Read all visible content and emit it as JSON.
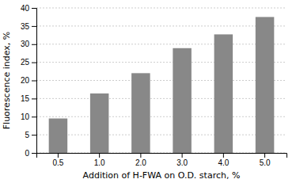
{
  "chart_data": {
    "type": "bar",
    "categories": [
      "0.5",
      "1.0",
      "2.0",
      "3.0",
      "4.0",
      "5.0"
    ],
    "values": [
      9.5,
      16.4,
      22.0,
      28.9,
      32.7,
      37.5
    ],
    "color": "#888888",
    "xlabel": "Addition of H-FWA on O.D. starch, %",
    "ylabel": "Fluorescence index, %",
    "ylim": [
      0,
      40
    ],
    "yticks": [
      0,
      5,
      10,
      15,
      20,
      25,
      30,
      35,
      40
    ],
    "grid": true
  }
}
